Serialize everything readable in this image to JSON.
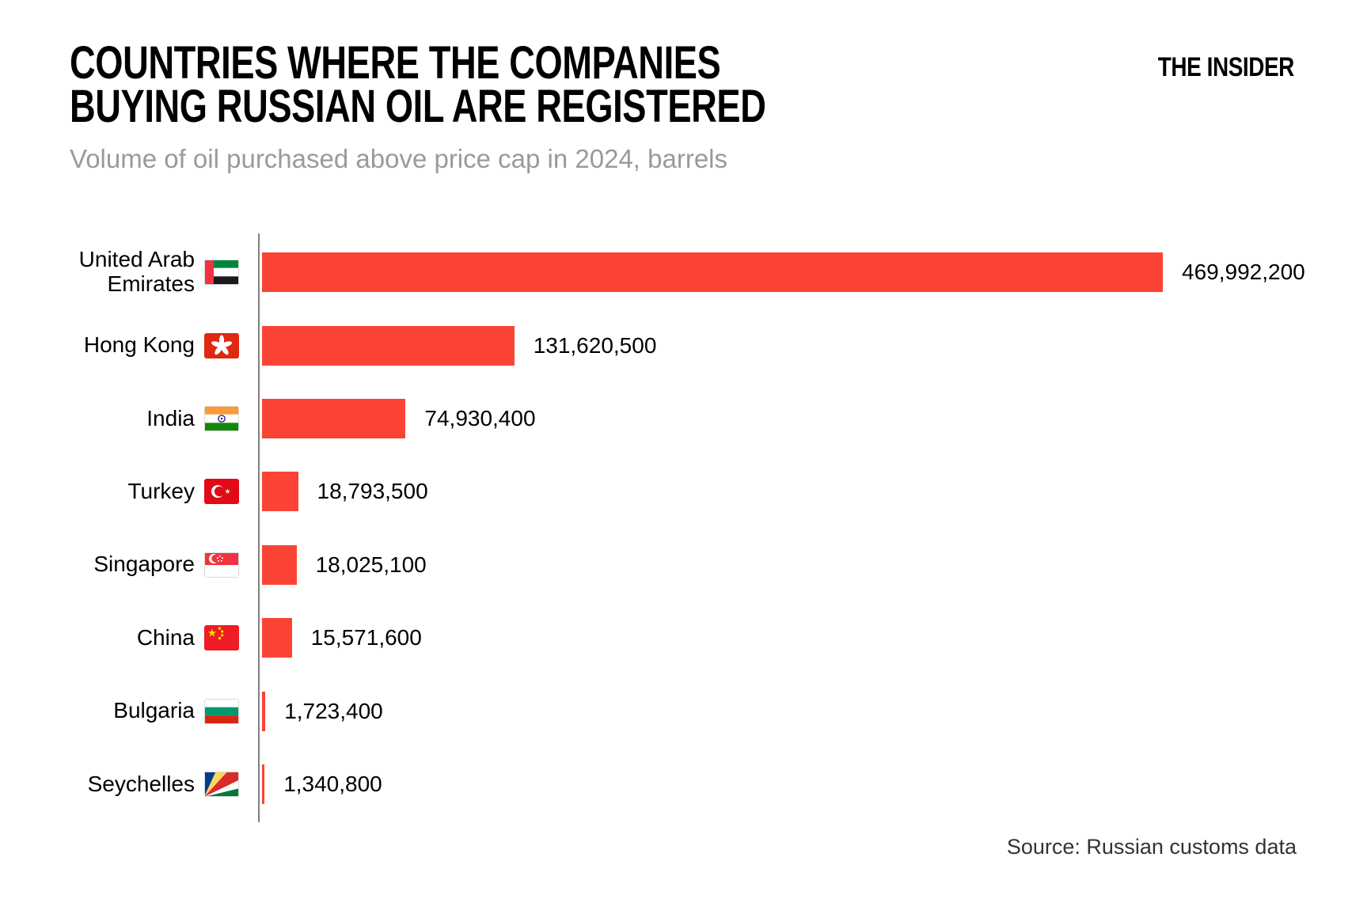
{
  "header": {
    "title_line1": "COUNTRIES WHERE THE COMPANIES",
    "title_line2": "BUYING RUSSIAN OIL ARE REGISTERED",
    "subtitle": "Volume of oil purchased above price cap in 2024, barrels",
    "logo": "THE INSIDER"
  },
  "footer": {
    "source": "Source: Russian customs data"
  },
  "colors": {
    "bar": "#fa4334",
    "axis": "#808080",
    "subtitle": "#9a9a9a",
    "text": "#000000",
    "source_text": "#333333"
  },
  "chart_data": {
    "type": "bar",
    "orientation": "horizontal",
    "title": "COUNTRIES WHERE THE COMPANIES BUYING RUSSIAN OIL ARE REGISTERED",
    "subtitle": "Volume of oil purchased above price cap in 2024, barrels",
    "unit": "barrels",
    "grid": false,
    "xlim": [
      0,
      470000000
    ],
    "categories": [
      "United Arab Emirates",
      "Hong Kong",
      "India",
      "Turkey",
      "Singapore",
      "China",
      "Bulgaria",
      "Seychelles"
    ],
    "values": [
      469992200,
      131620500,
      74930400,
      18793500,
      18025100,
      15571600,
      1723400,
      1340800
    ],
    "value_labels": [
      "469,992,200",
      "131,620,500",
      "74,930,400",
      "18,793,500",
      "18,025,100",
      "15,571,600",
      "1,723,400",
      "1,340,800"
    ],
    "flags": [
      "ae",
      "hk",
      "in",
      "tr",
      "sg",
      "cn",
      "bg",
      "sc"
    ]
  }
}
